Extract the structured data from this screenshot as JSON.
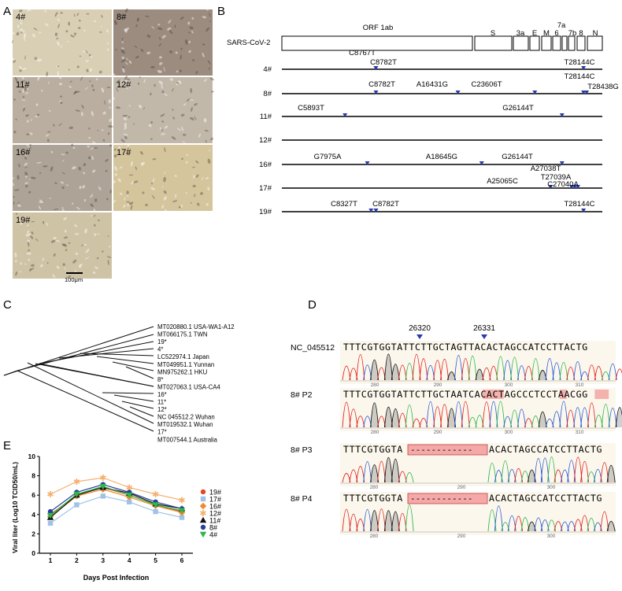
{
  "panelA": {
    "letter": "A",
    "images": [
      {
        "label": "4#",
        "bg": "#d8cfb4"
      },
      {
        "label": "8#",
        "bg": "#9c8c80"
      },
      {
        "label": "11#",
        "bg": "#b9ae9f"
      },
      {
        "label": "12#",
        "bg": "#c2b8aa"
      },
      {
        "label": "16#",
        "bg": "#ada396"
      },
      {
        "label": "17#",
        "bg": "#d4c59d"
      },
      {
        "label": "19#",
        "bg": "#cfc3a6"
      }
    ],
    "scale_bar": "100μm"
  },
  "panelB": {
    "letter": "B",
    "genome_label": "SARS-CoV-2",
    "genes": [
      "ORF 1ab",
      "S",
      "3a",
      "E",
      "M",
      "6",
      "7a",
      "7b",
      "8",
      "N"
    ],
    "rows": [
      {
        "label": "4#",
        "mutations": [
          "C8767T",
          "C8782T",
          "T28144C"
        ]
      },
      {
        "label": "8#",
        "mutations": [
          "C8782T",
          "A16431G",
          "C23606T",
          "T28144C",
          "T28438G"
        ]
      },
      {
        "label": "11#",
        "mutations": [
          "C5893T",
          "G26144T"
        ]
      },
      {
        "label": "12#",
        "mutations": []
      },
      {
        "label": "16#",
        "mutations": [
          "G7975A",
          "A18645G",
          "G26144T"
        ]
      },
      {
        "label": "17#",
        "mutations": [
          "A27038T",
          "A25065C",
          "T27039A",
          "C27040A"
        ]
      },
      {
        "label": "19#",
        "mutations": [
          "C8327T",
          "C8782T",
          "T28144C"
        ]
      }
    ]
  },
  "panelC": {
    "letter": "C",
    "taxa": [
      "MT020880.1 USA-WA1-A12",
      "MT066175.1 TWN",
      "19*",
      "4*",
      "LC522974.1 Japan",
      "MT049951.1 Yunnan",
      "MN975262.1 HKU",
      "8*",
      "MT027063.1 USA-CA4",
      "16*",
      "11*",
      "12*",
      "NC 045512.2 Wuhan",
      "MT019532.1 Wuhan",
      "17*",
      "MT007544.1 Australia"
    ]
  },
  "panelD": {
    "letter": "D",
    "positions": [
      "26320",
      "26331"
    ],
    "tracks": [
      {
        "label": "NC_045512",
        "seq": "TTTCGTGGTATTCTTGCTAGTTACACTAGCCATCCTTACTG",
        "ticks": [
          "280",
          "290",
          "300",
          "310"
        ]
      },
      {
        "label": "8# P2",
        "seq": "TTTCGTGGTATTCTTGCTAATCACACTAGCCCTCCTAACGG",
        "ticks": [
          "280",
          "290",
          "300",
          "310"
        ]
      },
      {
        "label": "8# P3",
        "seq_left": "TTTCGTGGTA",
        "gap": "------------",
        "seq_right": "ACACTAGCCATCCTTACTG",
        "ticks": [
          "280",
          "290",
          "300"
        ]
      },
      {
        "label": "8# P4",
        "seq_left": "TTTCGTGGTA",
        "gap": "------------",
        "seq_right": "ACACTAGCCATCCTTACTG",
        "ticks": [
          "280",
          "290",
          "300"
        ]
      }
    ]
  },
  "panelE": {
    "letter": "E",
    "chart_data": {
      "type": "line",
      "xlabel": "Days Post Infection",
      "ylabel": "Viral liter (Log10 TCID50/mL)",
      "x": [
        1,
        2,
        3,
        4,
        5,
        6
      ],
      "ylim": [
        0,
        10
      ],
      "yticks": [
        0,
        2,
        4,
        6,
        8,
        10
      ],
      "series": [
        {
          "name": "19#",
          "color": "#e0492a",
          "marker": "circle",
          "values": [
            4.0,
            6.0,
            6.8,
            6.0,
            5.0,
            4.3
          ]
        },
        {
          "name": "17#",
          "color": "#9ec3e8",
          "marker": "square",
          "values": [
            3.1,
            5.0,
            5.9,
            5.3,
            4.3,
            3.7
          ]
        },
        {
          "name": "16#",
          "color": "#f08a2a",
          "marker": "diamond",
          "values": [
            3.8,
            5.9,
            6.6,
            5.8,
            4.9,
            4.2
          ]
        },
        {
          "name": "12#",
          "color": "#f5b070",
          "marker": "star",
          "values": [
            6.1,
            7.4,
            7.8,
            6.8,
            6.1,
            5.5
          ]
        },
        {
          "name": "11#",
          "color": "#111111",
          "marker": "triangle",
          "values": [
            3.7,
            6.0,
            6.8,
            6.2,
            5.1,
            4.6
          ]
        },
        {
          "name": "8#",
          "color": "#2a3e9c",
          "marker": "circle",
          "values": [
            4.3,
            6.3,
            7.1,
            6.3,
            5.3,
            4.6
          ]
        },
        {
          "name": "4#",
          "color": "#2bb84a",
          "marker": "triangle-down",
          "values": [
            3.9,
            6.1,
            6.9,
            6.0,
            5.0,
            4.4
          ]
        }
      ]
    }
  }
}
